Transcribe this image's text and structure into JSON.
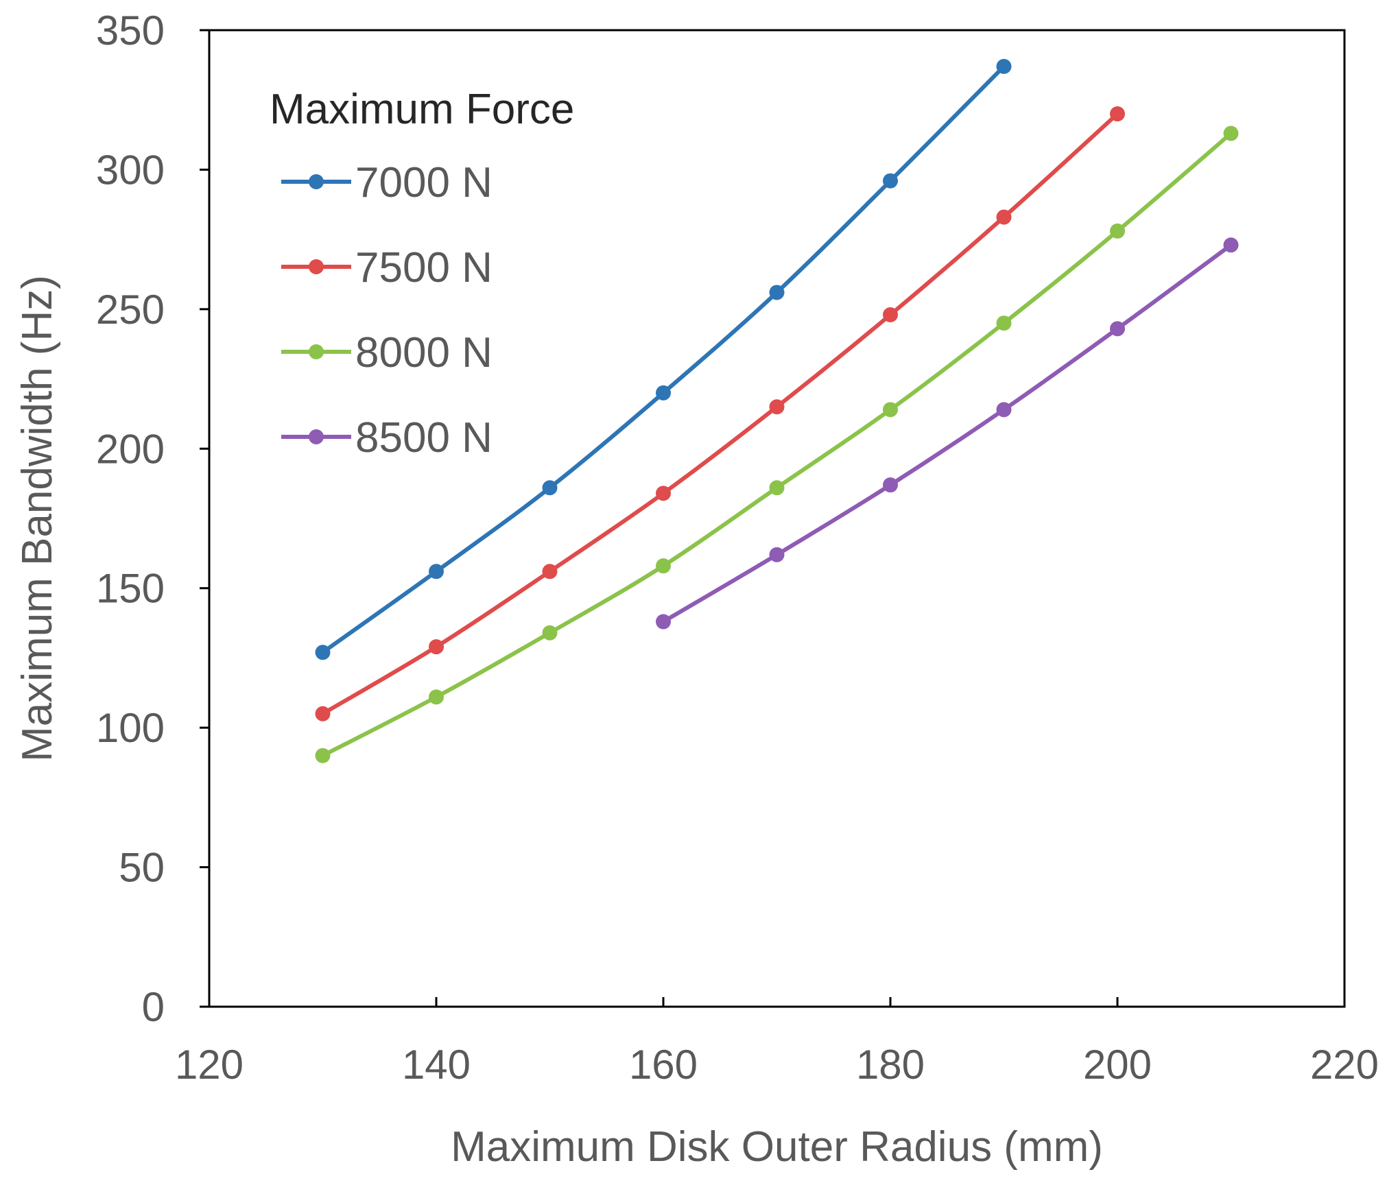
{
  "chart_data": {
    "type": "line",
    "title": "",
    "xlabel": "Maximum Disk Outer Radius (mm)",
    "ylabel": "Maximum Bandwidth (Hz)",
    "xlim": [
      120,
      220
    ],
    "ylim": [
      0,
      350
    ],
    "xticks": [
      120,
      140,
      160,
      180,
      200,
      220
    ],
    "yticks": [
      0,
      50,
      100,
      150,
      200,
      250,
      300,
      350
    ],
    "grid": false,
    "legend": {
      "title": "Maximum Force",
      "placement": "top-left"
    },
    "series": [
      {
        "name": "7000 N",
        "color": "#2E75B6",
        "x": [
          130,
          140,
          150,
          160,
          170,
          180,
          190
        ],
        "y": [
          127,
          156,
          186,
          220,
          256,
          296,
          337
        ]
      },
      {
        "name": "7500 N",
        "color": "#E04B4B",
        "x": [
          130,
          140,
          150,
          160,
          170,
          180,
          190,
          200
        ],
        "y": [
          105,
          129,
          156,
          184,
          215,
          248,
          283,
          320
        ]
      },
      {
        "name": "8000 N",
        "color": "#8BC34A",
        "x": [
          130,
          140,
          150,
          160,
          170,
          180,
          190,
          200,
          210
        ],
        "y": [
          90,
          111,
          134,
          158,
          186,
          214,
          245,
          278,
          313
        ]
      },
      {
        "name": "8500 N",
        "color": "#8E5BB5",
        "x": [
          160,
          170,
          180,
          190,
          200,
          210
        ],
        "y": [
          138,
          162,
          187,
          214,
          243,
          273
        ]
      }
    ]
  }
}
